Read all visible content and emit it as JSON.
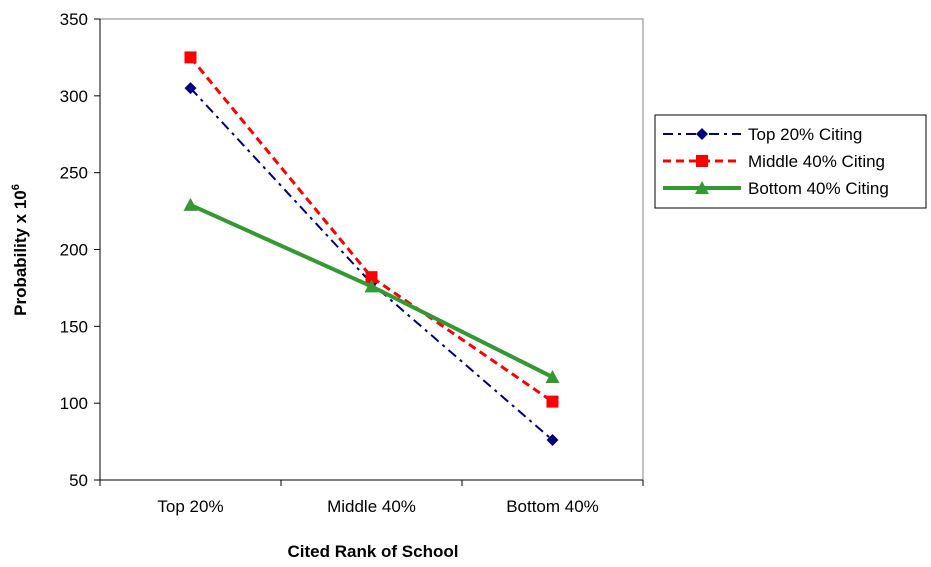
{
  "chart_data": {
    "type": "line",
    "title": "",
    "xlabel": "Cited Rank of School",
    "ylabel_base": "Probability x 10",
    "ylabel_exp": "6",
    "categories": [
      "Top 20%",
      "Middle 40%",
      "Bottom 40%"
    ],
    "ylim": [
      50,
      350
    ],
    "yticks": [
      50,
      100,
      150,
      200,
      250,
      300,
      350
    ],
    "grid": false,
    "legend_position": "right",
    "series": [
      {
        "name": "Top 20% Citing",
        "values": [
          305,
          178,
          76
        ],
        "color": "#000080",
        "marker": "diamond",
        "dash": "dash-dot"
      },
      {
        "name": "Middle 40% Citing",
        "values": [
          325,
          182,
          101
        ],
        "color": "#ff0000",
        "marker": "square",
        "dash": "dash"
      },
      {
        "name": "Bottom 40% Citing",
        "values": [
          229,
          176,
          117
        ],
        "color": "#339933",
        "marker": "triangle",
        "dash": "solid"
      }
    ]
  }
}
